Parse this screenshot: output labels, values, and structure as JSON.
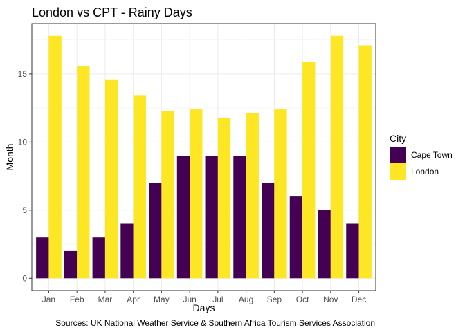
{
  "chart_data": {
    "type": "bar",
    "title": "London vs CPT - Rainy Days",
    "xlabel": "Days",
    "ylabel": "Month",
    "caption": "Sources: UK National Weather Service & Southern Africa Tourism Services Association",
    "categories": [
      "Jan",
      "Feb",
      "Mar",
      "Apr",
      "May",
      "Jun",
      "Jul",
      "Aug",
      "Sep",
      "Oct",
      "Nov",
      "Dec"
    ],
    "series": [
      {
        "name": "Cape Town",
        "color": "#440154",
        "values": [
          3,
          2,
          3,
          4,
          7,
          9,
          9,
          9,
          7,
          6,
          5,
          4
        ]
      },
      {
        "name": "London",
        "color": "#FDE725",
        "values": [
          17.8,
          15.6,
          14.6,
          13.4,
          12.3,
          12.4,
          11.8,
          12.1,
          12.4,
          15.9,
          17.8,
          17.1
        ]
      }
    ],
    "ylim": [
      -0.9,
      18.7
    ],
    "yticks": [
      0,
      5,
      10,
      15
    ],
    "legend": {
      "title": "City",
      "position": "right"
    },
    "grid": true
  }
}
